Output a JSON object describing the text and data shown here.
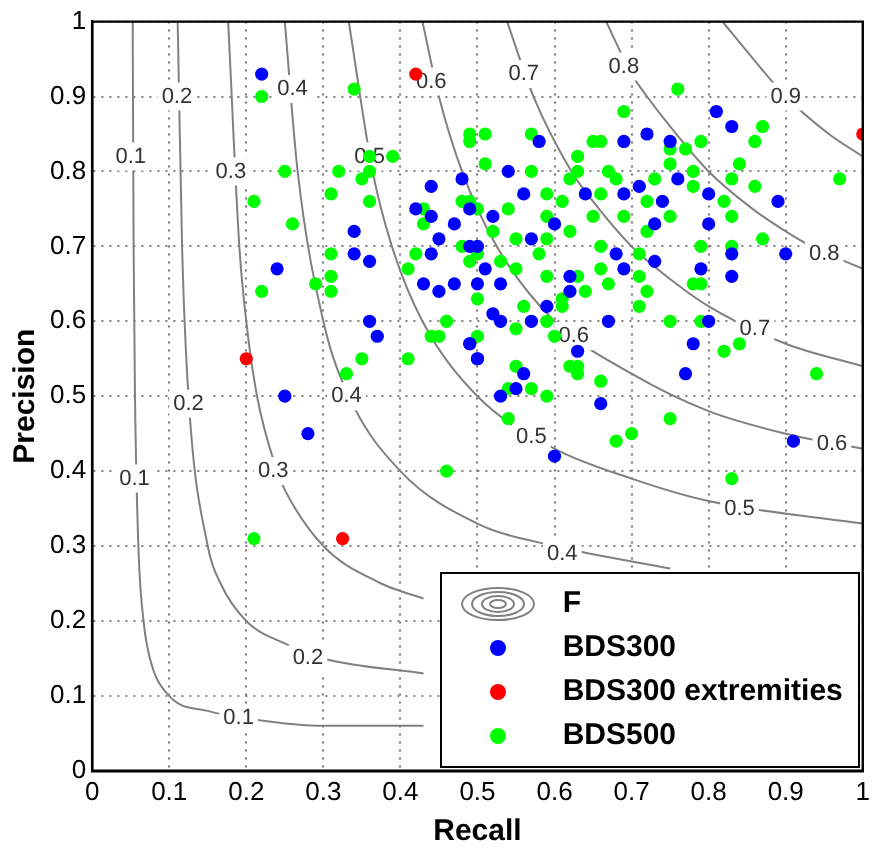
{
  "chart_data": {
    "type": "scatter",
    "xlabel": "Recall",
    "ylabel": "Precision",
    "xlim": [
      0,
      1
    ],
    "ylim": [
      0,
      1
    ],
    "xticks": [
      0,
      0.1,
      0.2,
      0.3,
      0.4,
      0.5,
      0.6,
      0.7,
      0.8,
      0.9,
      1
    ],
    "yticks": [
      0,
      0.1,
      0.2,
      0.3,
      0.4,
      0.5,
      0.6,
      0.7,
      0.8,
      0.9,
      1
    ],
    "grid": true,
    "legend": "bottom right",
    "marker": "circle",
    "series": [
      {
        "name": "F",
        "type": "line",
        "marker": "none",
        "color": "#808080",
        "x": [
          0.0526,
          0.0538,
          0.0556,
          0.06,
          0.0667,
          0.075,
          0.1,
          0.15,
          0.2,
          0.3,
          0.43
        ],
        "values": [
          1,
          0.7,
          0.5,
          0.3,
          0.2,
          0.15,
          0.1,
          0.08,
          0.07,
          0.06,
          0.06
        ]
      },
      {
        "type": "line",
        "marker": "none",
        "color": "#808080",
        "x": [
          0.111,
          0.1167,
          0.125,
          0.15,
          0.1667,
          0.2,
          0.25,
          0.3,
          0.43
        ],
        "values": [
          1,
          0.7,
          0.5,
          0.3,
          0.25,
          0.2,
          0.17,
          0.15,
          0.13
        ]
      },
      {
        "type": "line",
        "marker": "none",
        "color": "#808080",
        "x": [
          0.1765,
          0.191,
          0.2,
          0.214,
          0.24,
          0.25,
          0.3,
          0.375,
          0.4,
          0.43
        ],
        "values": [
          1,
          0.7,
          0.6,
          0.5,
          0.4,
          0.375,
          0.3,
          0.25,
          0.24,
          0.23
        ]
      },
      {
        "type": "line",
        "marker": "none",
        "color": "#808080",
        "x": [
          0.25,
          0.2667,
          0.3,
          0.333,
          0.4,
          0.5,
          0.6,
          0.75
        ],
        "values": [
          1,
          0.8,
          0.6,
          0.5,
          0.4,
          0.33,
          0.3,
          0.27
        ]
      },
      {
        "type": "line",
        "marker": "none",
        "color": "#808080",
        "x": [
          0.333,
          0.364,
          0.389,
          0.4286,
          0.5,
          0.6,
          0.7,
          0.8,
          1
        ],
        "values": [
          1,
          0.8,
          0.7,
          0.6,
          0.5,
          0.43,
          0.39,
          0.36,
          0.33
        ]
      },
      {
        "type": "line",
        "marker": "none",
        "color": "#808080",
        "x": [
          0.4286,
          0.45,
          0.48,
          0.525,
          0.6,
          0.7,
          0.8,
          0.9,
          1
        ],
        "values": [
          1,
          0.9,
          0.8,
          0.7,
          0.6,
          0.53,
          0.48,
          0.45,
          0.43
        ]
      },
      {
        "type": "line",
        "marker": "none",
        "color": "#808080",
        "x": [
          0.5385,
          0.5727,
          0.622,
          0.65,
          0.7,
          0.758,
          0.8,
          0.9,
          1
        ],
        "values": [
          1,
          0.9,
          0.8,
          0.76,
          0.7,
          0.65,
          0.62,
          0.57,
          0.54
        ]
      },
      {
        "type": "line",
        "marker": "none",
        "color": "#808080",
        "x": [
          0.667,
          0.7,
          0.72,
          0.75,
          0.8,
          0.857,
          0.9,
          0.9333,
          1
        ],
        "values": [
          1,
          0.93,
          0.9,
          0.86,
          0.8,
          0.75,
          0.72,
          0.7,
          0.67
        ]
      },
      {
        "type": "line",
        "marker": "none",
        "color": "#808080",
        "x": [
          0.818,
          0.85,
          0.9,
          0.956,
          1
        ],
        "values": [
          1,
          0.96,
          0.9,
          0.85,
          0.82
        ]
      },
      {
        "name": "BDS300",
        "color": "#0000ff",
        "x": [
          0.22,
          0.44,
          0.48,
          0.42,
          0.44,
          0.34,
          0.45,
          0.47,
          0.49,
          0.34,
          0.36,
          0.44,
          0.24,
          0.43,
          0.45,
          0.47,
          0.5,
          0.36,
          0.37,
          0.49,
          0.5,
          0.25,
          0.28,
          0.58,
          0.69,
          0.72,
          0.75,
          0.81,
          0.83,
          0.54,
          0.56,
          0.64,
          0.69,
          0.71,
          0.74,
          0.76,
          0.8,
          0.89,
          0.52,
          0.6,
          0.73,
          0.8,
          0.57,
          0.68,
          0.73,
          0.83,
          0.9,
          0.51,
          0.53,
          0.62,
          0.62,
          0.69,
          0.79,
          0.52,
          0.53,
          0.57,
          0.59,
          0.67,
          0.78,
          0.8,
          0.5,
          0.56,
          0.63,
          0.77,
          0.55,
          0.53,
          0.66,
          0.6,
          0.91,
          0.49,
          0.5,
          0.83,
          0.49
        ],
        "values": [
          0.93,
          0.78,
          0.79,
          0.75,
          0.74,
          0.72,
          0.71,
          0.73,
          0.7,
          0.69,
          0.68,
          0.69,
          0.67,
          0.65,
          0.64,
          0.65,
          0.65,
          0.6,
          0.58,
          0.57,
          0.55,
          0.5,
          0.45,
          0.84,
          0.84,
          0.85,
          0.84,
          0.88,
          0.86,
          0.8,
          0.77,
          0.77,
          0.77,
          0.78,
          0.76,
          0.79,
          0.77,
          0.76,
          0.74,
          0.73,
          0.73,
          0.73,
          0.71,
          0.69,
          0.68,
          0.69,
          0.69,
          0.67,
          0.65,
          0.66,
          0.64,
          0.67,
          0.67,
          0.61,
          0.6,
          0.6,
          0.62,
          0.6,
          0.57,
          0.6,
          0.55,
          0.53,
          0.56,
          0.53,
          0.51,
          0.5,
          0.49,
          0.42,
          0.44,
          0.75,
          0.7,
          0.66,
          0.57
        ]
      },
      {
        "name": "BDS300 extremities",
        "color": "#ff0000",
        "x": [
          0.42,
          0.2,
          0.325,
          1
        ],
        "values": [
          0.93,
          0.55,
          0.31,
          0.85
        ]
      },
      {
        "name": "BDS500",
        "color": "#00ff00",
        "x": [
          0.22,
          0.34,
          0.49,
          0.36,
          0.39,
          0.25,
          0.32,
          0.35,
          0.36,
          0.21,
          0.31,
          0.36,
          0.26,
          0.43,
          0.43,
          0.48,
          0.5,
          0.48,
          0.31,
          0.42,
          0.49,
          0.31,
          0.41,
          0.29,
          0.22,
          0.31,
          0.5,
          0.46,
          0.44,
          0.45,
          0.35,
          0.41,
          0.33,
          0.21,
          0.46,
          0.49,
          0.51,
          0.57,
          0.65,
          0.66,
          0.69,
          0.76,
          0.75,
          0.77,
          0.79,
          0.86,
          0.87,
          0.63,
          0.63,
          0.67,
          0.75,
          0.78,
          0.84,
          0.51,
          0.57,
          0.62,
          0.68,
          0.73,
          0.83,
          0.86,
          0.97,
          0.59,
          0.61,
          0.66,
          0.72,
          0.78,
          0.82,
          0.49,
          0.54,
          0.59,
          0.65,
          0.69,
          0.75,
          0.83,
          0.52,
          0.55,
          0.59,
          0.62,
          0.72,
          0.79,
          0.87,
          0.5,
          0.53,
          0.58,
          0.66,
          0.66,
          0.71,
          0.83,
          0.55,
          0.59,
          0.63,
          0.67,
          0.71,
          0.78,
          0.79,
          0.61,
          0.64,
          0.56,
          0.61,
          0.71,
          0.72,
          0.75,
          0.79,
          0.55,
          0.6,
          0.5,
          0.59,
          0.84,
          0.82,
          0.55,
          0.63,
          0.63,
          0.66,
          0.94,
          0.54,
          0.59,
          0.62,
          0.57,
          0.54,
          0.75,
          0.7,
          0.68,
          0.83
        ],
        "values": [
          0.9,
          0.91,
          0.85,
          0.82,
          0.82,
          0.8,
          0.8,
          0.79,
          0.8,
          0.76,
          0.77,
          0.76,
          0.73,
          0.75,
          0.73,
          0.76,
          0.75,
          0.7,
          0.69,
          0.69,
          0.68,
          0.66,
          0.67,
          0.65,
          0.64,
          0.64,
          0.63,
          0.6,
          0.58,
          0.58,
          0.55,
          0.55,
          0.53,
          0.31,
          0.4,
          0.84,
          0.85,
          0.85,
          0.84,
          0.84,
          0.88,
          0.91,
          0.83,
          0.83,
          0.84,
          0.84,
          0.86,
          0.82,
          0.8,
          0.8,
          0.81,
          0.8,
          0.81,
          0.81,
          0.8,
          0.79,
          0.79,
          0.79,
          0.79,
          0.78,
          0.79,
          0.77,
          0.76,
          0.77,
          0.76,
          0.78,
          0.76,
          0.76,
          0.75,
          0.74,
          0.74,
          0.74,
          0.74,
          0.74,
          0.72,
          0.71,
          0.71,
          0.72,
          0.72,
          0.7,
          0.71,
          0.69,
          0.68,
          0.69,
          0.7,
          0.67,
          0.69,
          0.7,
          0.67,
          0.66,
          0.66,
          0.65,
          0.66,
          0.65,
          0.65,
          0.63,
          0.64,
          0.62,
          0.62,
          0.62,
          0.64,
          0.6,
          0.6,
          0.59,
          0.58,
          0.58,
          0.6,
          0.57,
          0.56,
          0.54,
          0.54,
          0.53,
          0.52,
          0.53,
          0.51,
          0.5,
          0.54,
          0.51,
          0.47,
          0.47,
          0.45,
          0.44,
          0.39
        ]
      }
    ],
    "annotations": [
      {
        "text": "0.1",
        "x": 0.05,
        "y": 0.82
      },
      {
        "text": "0.1",
        "x": 0.055,
        "y": 0.39
      },
      {
        "text": "0.1",
        "x": 0.19,
        "y": 0.07
      },
      {
        "text": "0.2",
        "x": 0.11,
        "y": 0.9
      },
      {
        "text": "0.2",
        "x": 0.125,
        "y": 0.49
      },
      {
        "text": "0.2",
        "x": 0.28,
        "y": 0.15
      },
      {
        "text": "0.3",
        "x": 0.18,
        "y": 0.8
      },
      {
        "text": "0.3",
        "x": 0.235,
        "y": 0.4
      },
      {
        "text": "0.4",
        "x": 0.26,
        "y": 0.91
      },
      {
        "text": "0.4",
        "x": 0.33,
        "y": 0.5
      },
      {
        "text": "0.4",
        "x": 0.61,
        "y": 0.29
      },
      {
        "text": "0.5",
        "x": 0.36,
        "y": 0.82
      },
      {
        "text": "0.5",
        "x": 0.57,
        "y": 0.445
      },
      {
        "text": "0.5",
        "x": 0.84,
        "y": 0.35
      },
      {
        "text": "0.6",
        "x": 0.44,
        "y": 0.92
      },
      {
        "text": "0.6",
        "x": 0.625,
        "y": 0.58
      },
      {
        "text": "0.6",
        "x": 0.96,
        "y": 0.436
      },
      {
        "text": "0.7",
        "x": 0.56,
        "y": 0.93
      },
      {
        "text": "0.7",
        "x": 0.86,
        "y": 0.59
      },
      {
        "text": "0.8",
        "x": 0.69,
        "y": 0.94
      },
      {
        "text": "0.8",
        "x": 0.95,
        "y": 0.69
      },
      {
        "text": "0.9",
        "x": 0.9,
        "y": 0.9
      }
    ]
  }
}
